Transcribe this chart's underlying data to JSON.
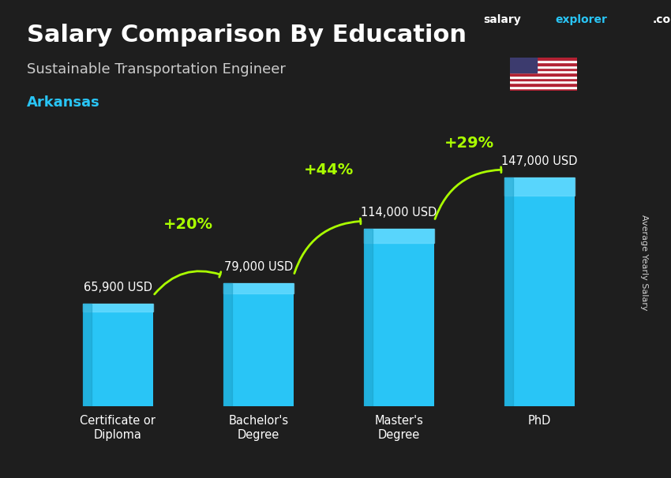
{
  "title_line1": "Salary Comparison By Education",
  "subtitle": "Sustainable Transportation Engineer",
  "location": "Arkansas",
  "ylabel": "Average Yearly Salary",
  "website": "salaryexplorer.com",
  "website_salary": "salary",
  "website_explorer": "explorer",
  "categories": [
    "Certificate or\nDiploma",
    "Bachelor's\nDegree",
    "Master's\nDegree",
    "PhD"
  ],
  "values": [
    65900,
    79000,
    114000,
    147000
  ],
  "value_labels": [
    "65,900 USD",
    "79,000 USD",
    "114,000 USD",
    "147,000 USD"
  ],
  "pct_labels": [
    "+20%",
    "+44%",
    "+29%"
  ],
  "bar_color": "#29c5f6",
  "bar_color_top": "#6ddcff",
  "bar_color_dark": "#1a9ec8",
  "title_color": "#ffffff",
  "subtitle_color": "#dddddd",
  "location_color": "#29c5f6",
  "value_label_color": "#ffffff",
  "pct_color": "#aaff00",
  "arrow_color": "#aaff00",
  "bg_color_top": "#2a2a2a",
  "bg_color_bottom": "#1a1a1a",
  "ylim": [
    0,
    175000
  ],
  "bar_width": 0.5
}
